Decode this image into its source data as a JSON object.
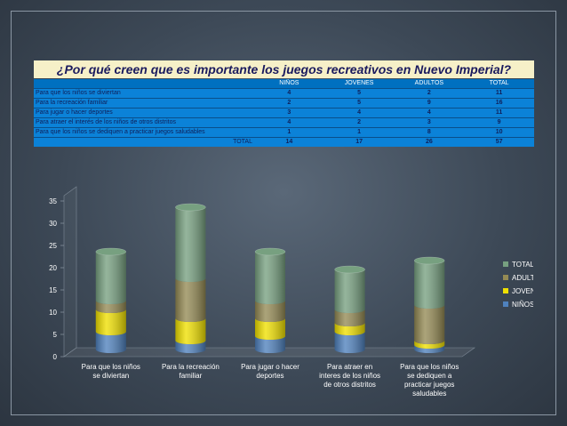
{
  "title": "¿Por qué creen que es importante los juegos recreativos en Nuevo Imperial?",
  "table": {
    "headers": [
      "",
      "NIÑOS",
      "JOVENES",
      "ADULTOS",
      "TOTAL"
    ],
    "rows": [
      [
        "Para que los niños se diviertan",
        "4",
        "5",
        "2",
        "11"
      ],
      [
        "Para la recreación familiar",
        "2",
        "5",
        "9",
        "16"
      ],
      [
        "Para jugar o hacer deportes",
        "3",
        "4",
        "4",
        "11"
      ],
      [
        "Para atraer el interés de los niños de otros distritos",
        "4",
        "2",
        "3",
        "9"
      ],
      [
        "Para que los niños se dediquen a practicar juegos saludables",
        "1",
        "1",
        "8",
        "10"
      ]
    ],
    "total_row": [
      "TOTAL",
      "14",
      "17",
      "26",
      "57"
    ]
  },
  "colors": {
    "NIÑOS": "#4f81bd",
    "JOVENES": "#f0e000",
    "ADULTOS": "#948a54",
    "TOTAL": "#77a080"
  },
  "chart_data": {
    "type": "bar",
    "stacked": true,
    "style": "3d-cylinder",
    "categories": [
      "Para que los niños se diviertan",
      "Para la recreación familiar",
      "Para jugar o hacer deportes",
      "Para atraer en interes de los niños de otros distritos",
      "Para que los niños se dediquen a practicar juegos saludables"
    ],
    "category_lines": [
      [
        "Para que los niños",
        "se diviertan"
      ],
      [
        "Para la recreación",
        "familiar"
      ],
      [
        "Para jugar o hacer",
        "deportes"
      ],
      [
        "Para atraer en",
        "interes de los niños",
        "de otros distritos"
      ],
      [
        "Para que los niños",
        "se dediquen a",
        "practicar juegos",
        "saludables"
      ]
    ],
    "series": [
      {
        "name": "NIÑOS",
        "values": [
          4,
          2,
          3,
          4,
          1
        ]
      },
      {
        "name": "JOVENES",
        "values": [
          5,
          5,
          4,
          2,
          1
        ]
      },
      {
        "name": "ADULTOS",
        "values": [
          2,
          9,
          4,
          3,
          8
        ]
      },
      {
        "name": "TOTAL",
        "values": [
          11,
          16,
          11,
          9,
          10
        ]
      }
    ],
    "ylim": [
      0,
      35
    ],
    "yticks": [
      0,
      5,
      10,
      15,
      20,
      25,
      30,
      35
    ],
    "legend": "right",
    "legend_order": [
      "TOTAL",
      "ADULTOS",
      "JOVENES",
      "NIÑOS"
    ],
    "grid": false
  }
}
